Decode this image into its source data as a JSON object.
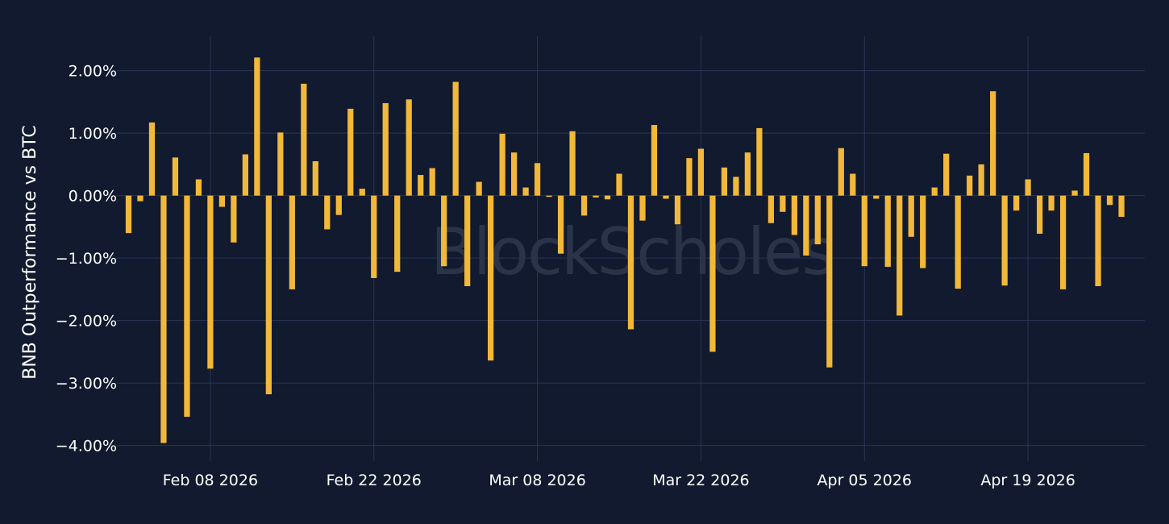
{
  "chart_data": {
    "type": "bar",
    "title": "",
    "ylabel": "BNB Outperformance vs BTC",
    "xlabel": "",
    "watermark": "BlockScholes",
    "bar_color": "#f2b83a",
    "background_color": "#111a2e",
    "grid_color": "#2a3656",
    "grid": true,
    "ylim": [
      -0.0425,
      0.0255
    ],
    "xlim": [
      "2026-01-31",
      "2026-04-29"
    ],
    "yticks": [
      {
        "value": 0.02,
        "label": "2.00%"
      },
      {
        "value": 0.01,
        "label": "1.00%"
      },
      {
        "value": 0.0,
        "label": "0.00%"
      },
      {
        "value": -0.01,
        "label": "−1.00%"
      },
      {
        "value": -0.02,
        "label": "−2.00%"
      },
      {
        "value": -0.03,
        "label": "−3.00%"
      },
      {
        "value": -0.04,
        "label": "−4.00%"
      }
    ],
    "xticks": [
      {
        "date": "2026-02-08",
        "label": "Feb 08 2026"
      },
      {
        "date": "2026-02-22",
        "label": "Feb 22 2026"
      },
      {
        "date": "2026-03-08",
        "label": "Mar 08 2026"
      },
      {
        "date": "2026-03-22",
        "label": "Mar 22 2026"
      },
      {
        "date": "2026-04-05",
        "label": "Apr 05 2026"
      },
      {
        "date": "2026-04-19",
        "label": "Apr 19 2026"
      }
    ],
    "start_date": "2026-02-01",
    "values": [
      -0.006,
      -0.0009,
      0.0117,
      -0.0396,
      0.0061,
      -0.0354,
      0.0026,
      -0.0277,
      -0.0018,
      -0.0075,
      0.0066,
      0.0221,
      -0.0318,
      0.0101,
      -0.015,
      0.0179,
      0.0055,
      -0.0054,
      -0.0031,
      0.0139,
      0.0011,
      -0.0132,
      0.0148,
      -0.0122,
      0.0154,
      0.0033,
      0.0044,
      -0.0113,
      0.0182,
      -0.0145,
      0.0022,
      -0.0264,
      0.0099,
      0.0069,
      0.0013,
      0.0052,
      -0.0002,
      -0.0093,
      0.0103,
      -0.0032,
      -0.0003,
      -0.0006,
      0.0035,
      -0.0214,
      -0.004,
      0.0113,
      -0.0005,
      -0.0046,
      0.006,
      0.0075,
      -0.025,
      0.0045,
      0.003,
      0.0069,
      0.0108,
      -0.0044,
      -0.0026,
      -0.0063,
      -0.0096,
      -0.0078,
      -0.0275,
      0.0076,
      0.0035,
      -0.0113,
      -0.0005,
      -0.0114,
      -0.0192,
      -0.0066,
      -0.0116,
      0.0013,
      0.0067,
      -0.0149,
      0.0032,
      0.005,
      0.0167,
      -0.0144,
      -0.0024,
      0.0026,
      -0.0061,
      -0.0024,
      -0.015,
      0.0008,
      0.0068,
      -0.0145,
      -0.0015,
      -0.0034
    ]
  }
}
